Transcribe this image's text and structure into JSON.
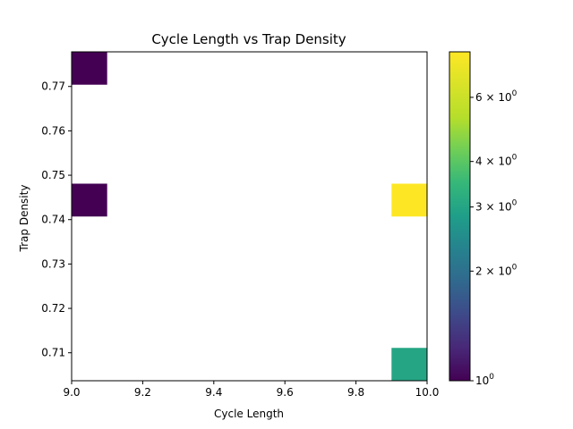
{
  "chart_data": {
    "type": "heatmap",
    "title": "Cycle Length vs Trap Density",
    "xlabel": "Cycle Length",
    "ylabel": "Trap Density",
    "xlim": [
      9.0,
      10.0
    ],
    "ylim": [
      0.7037,
      0.7778
    ],
    "x_ticks": [
      {
        "value": 9.0,
        "label": "9.0"
      },
      {
        "value": 9.2,
        "label": "9.2"
      },
      {
        "value": 9.4,
        "label": "9.4"
      },
      {
        "value": 9.6,
        "label": "9.6"
      },
      {
        "value": 9.8,
        "label": "9.8"
      },
      {
        "value": 10.0,
        "label": "10.0"
      }
    ],
    "y_ticks": [
      {
        "value": 0.71,
        "label": "0.71"
      },
      {
        "value": 0.72,
        "label": "0.72"
      },
      {
        "value": 0.73,
        "label": "0.73"
      },
      {
        "value": 0.74,
        "label": "0.74"
      },
      {
        "value": 0.75,
        "label": "0.75"
      },
      {
        "value": 0.76,
        "label": "0.76"
      },
      {
        "value": 0.77,
        "label": "0.77"
      }
    ],
    "cells": [
      {
        "x0": 9.0,
        "x1": 9.1,
        "y0": 0.7704,
        "y1": 0.7778,
        "count": 1
      },
      {
        "x0": 9.0,
        "x1": 9.1,
        "y0": 0.7407,
        "y1": 0.7481,
        "count": 1
      },
      {
        "x0": 9.9,
        "x1": 10.0,
        "y0": 0.7407,
        "y1": 0.7481,
        "count": 8
      },
      {
        "x0": 9.9,
        "x1": 10.0,
        "y0": 0.7037,
        "y1": 0.7111,
        "count": 3
      }
    ],
    "colorbar": {
      "scale": "log",
      "colormap": "viridis",
      "range": [
        1,
        8
      ],
      "ticks": [
        {
          "value": 1,
          "base": "10",
          "exp": "0"
        },
        {
          "value": 2,
          "base": "2 × 10",
          "exp": "0"
        },
        {
          "value": 3,
          "base": "3 × 10",
          "exp": "0"
        },
        {
          "value": 4,
          "base": "4 × 10",
          "exp": "0"
        },
        {
          "value": 6,
          "base": "6 × 10",
          "exp": "0"
        }
      ]
    },
    "grid": false,
    "legend": "none"
  }
}
